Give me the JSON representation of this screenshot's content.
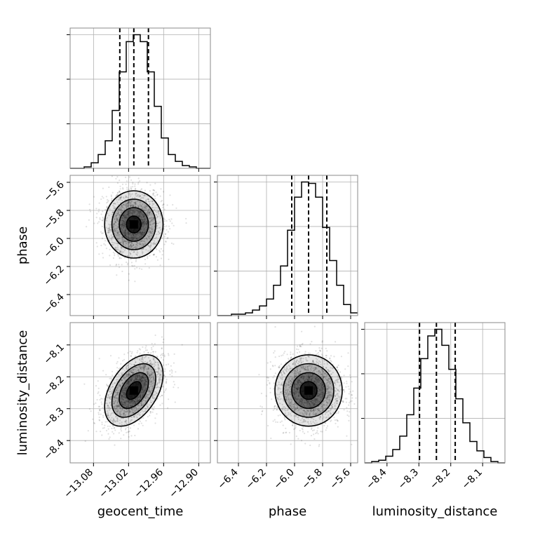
{
  "chart_data": {
    "type": "corner",
    "parameters": [
      "geocent_time",
      "phase",
      "luminosity_distance"
    ],
    "grid": true,
    "colors": {
      "line": "#000000",
      "grid": "#b0b0b0",
      "points": "#000000"
    },
    "ranges": {
      "geocent_time": [
        -13.12,
        -12.88
      ],
      "phase": [
        -6.55,
        -5.55
      ],
      "luminosity_distance": [
        -8.47,
        -8.03
      ]
    },
    "ticks": {
      "geocent_time": {
        "values": [
          -13.08,
          -13.02,
          -12.96,
          -12.9
        ],
        "labels": [
          "−13.08",
          "−13.02",
          "−12.96",
          "−12.90"
        ]
      },
      "phase": {
        "values": [
          -6.4,
          -6.2,
          -6.0,
          -5.8,
          -5.6
        ],
        "labels": [
          "−6.4",
          "−6.2",
          "−6.0",
          "−5.8",
          "−5.6"
        ]
      },
      "luminosity_distance": {
        "values": [
          -8.4,
          -8.3,
          -8.2,
          -8.1
        ],
        "labels": [
          "−8.4",
          "−8.3",
          "−8.2",
          "−8.1"
        ]
      }
    },
    "marginals": {
      "geocent_time": {
        "bin_edges": [
          -13.12,
          -13.108,
          -13.096,
          -13.084,
          -13.072,
          -13.06,
          -13.048,
          -13.036,
          -13.024,
          -13.012,
          -13.0,
          -12.988,
          -12.976,
          -12.964,
          -12.952,
          -12.94,
          -12.928,
          -12.916,
          -12.904,
          -12.892,
          -12.88
        ],
        "counts": [
          0,
          0,
          1,
          4,
          10,
          20,
          42,
          70,
          92,
          97,
          92,
          70,
          45,
          22,
          10,
          5,
          2,
          1,
          0,
          0
        ],
        "quantiles": [
          -13.035,
          -13.011,
          -12.986
        ]
      },
      "phase": {
        "bin_edges": [
          -6.55,
          -6.5,
          -6.45,
          -6.4,
          -6.35,
          -6.3,
          -6.25,
          -6.2,
          -6.15,
          -6.1,
          -6.05,
          -6.0,
          -5.95,
          -5.9,
          -5.85,
          -5.8,
          -5.75,
          -5.7,
          -5.65,
          -5.6,
          -5.55
        ],
        "counts": [
          0,
          0,
          1,
          1,
          2,
          4,
          7,
          12,
          22,
          36,
          62,
          86,
          97,
          96,
          86,
          64,
          40,
          22,
          8,
          2
        ],
        "quantiles": [
          -6.02,
          -5.9,
          -5.77
        ]
      },
      "luminosity_distance": {
        "bin_edges": [
          -8.47,
          -8.448,
          -8.426,
          -8.404,
          -8.382,
          -8.36,
          -8.338,
          -8.316,
          -8.294,
          -8.272,
          -8.25,
          -8.228,
          -8.206,
          -8.184,
          -8.162,
          -8.14,
          -8.118,
          -8.096,
          -8.074,
          -8.052,
          -8.03
        ],
        "counts": [
          0,
          1,
          2,
          5,
          10,
          20,
          36,
          56,
          78,
          95,
          100,
          88,
          70,
          48,
          30,
          16,
          9,
          4,
          1,
          0
        ],
        "quantiles": [
          -8.298,
          -8.245,
          -8.186
        ]
      }
    },
    "joint": {
      "phase_vs_geocent_time": {
        "mean_x": -13.011,
        "mean_y": -5.9,
        "sd_x": 0.025,
        "sd_y": 0.12,
        "rho": 0.0
      },
      "luminosity_distance_vs_geocent_time": {
        "mean_x": -13.011,
        "mean_y": -8.243,
        "sd_x": 0.025,
        "sd_y": 0.056,
        "rho": 0.45
      },
      "luminosity_distance_vs_phase": {
        "mean_x": -5.9,
        "mean_y": -8.243,
        "sd_x": 0.12,
        "sd_y": 0.056,
        "rho": 0.0
      }
    },
    "contour_levels_sigma": [
      0.5,
      1.0,
      1.5,
      2.0
    ]
  }
}
